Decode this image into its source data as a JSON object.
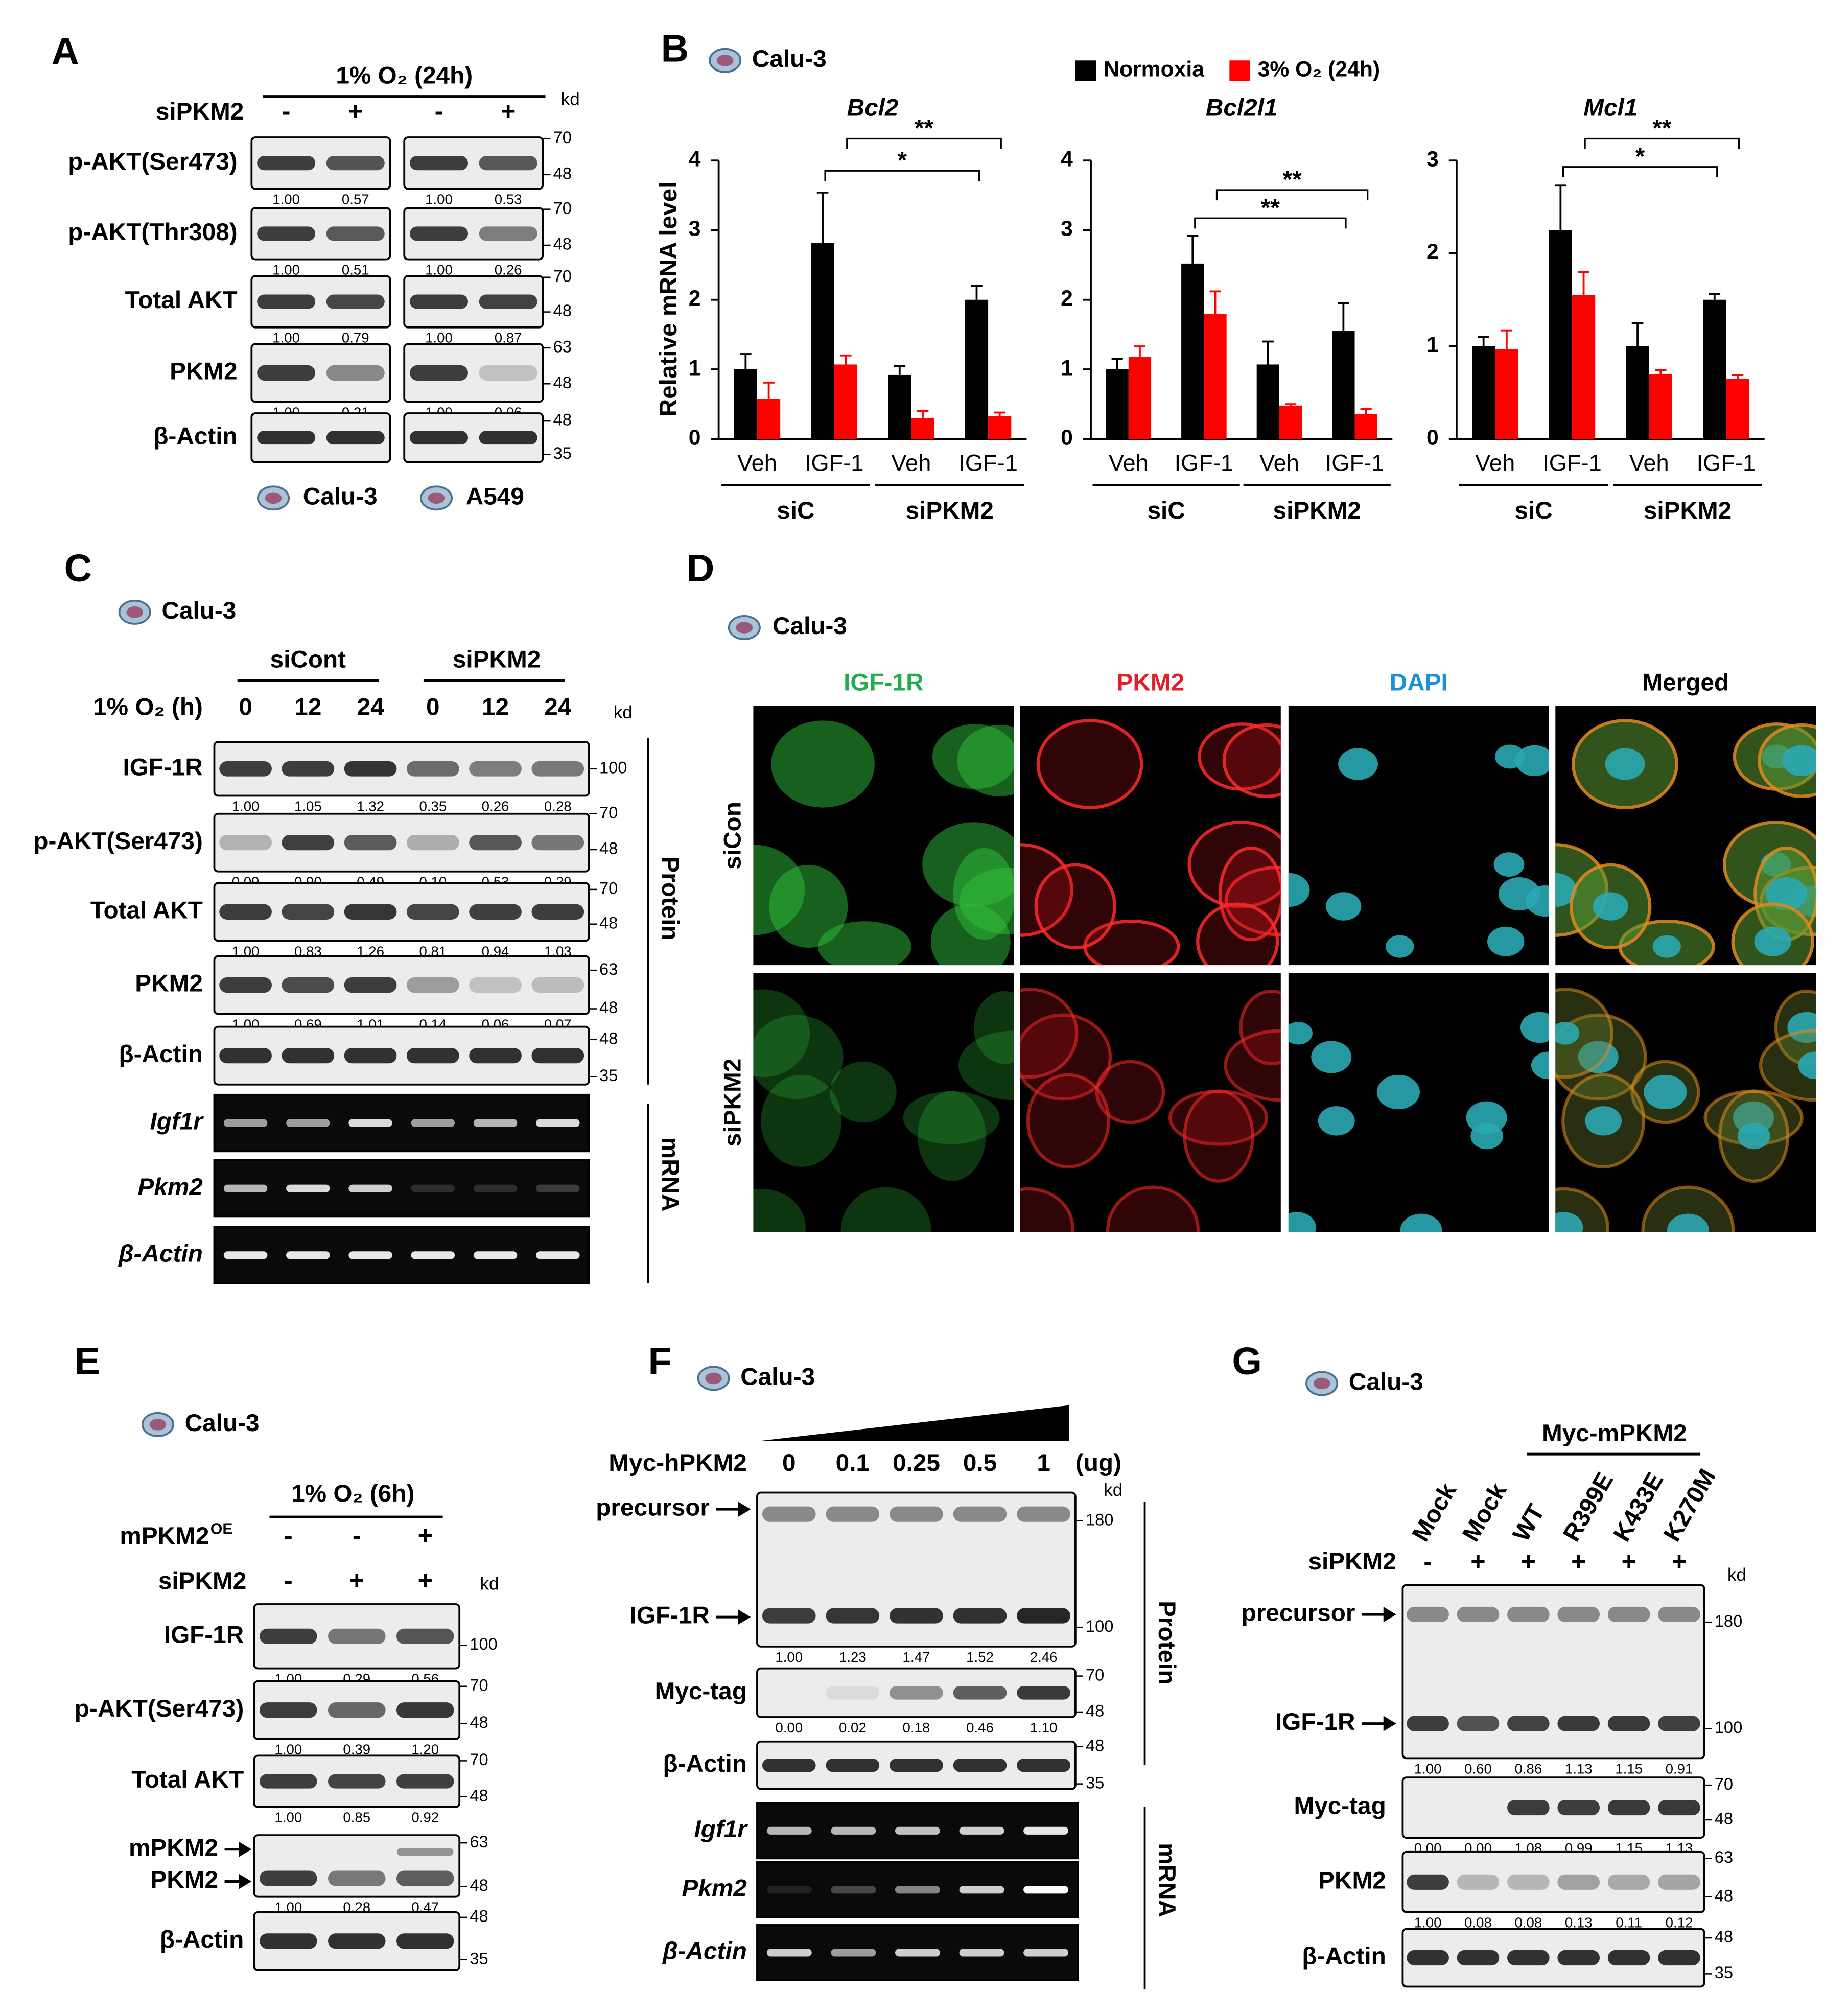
{
  "panel_a": {
    "label": "A",
    "condition": "1% O₂ (24h)",
    "sign_label": "siPKM2",
    "signs": [
      "-",
      "+",
      "-",
      "+"
    ],
    "kd": "kd",
    "rows": [
      {
        "names": [
          "p-AKT(Ser473)"
        ],
        "markers": [
          "70",
          "48"
        ],
        "quant": [
          "1.00",
          "0.57",
          "1.00",
          "0.53"
        ]
      },
      {
        "names": [
          "p-AKT(Thr308)"
        ],
        "markers": [
          "70",
          "48"
        ],
        "quant": [
          "1.00",
          "0.51",
          "1.00",
          "0.26"
        ]
      },
      {
        "names": [
          "Total AKT"
        ],
        "markers": [
          "70",
          "48"
        ],
        "quant": [
          "1.00",
          "0.79",
          "1.00",
          "0.87"
        ]
      },
      {
        "names": [
          "PKM2"
        ],
        "markers": [
          "63",
          "48"
        ],
        "quant": [
          "1.00",
          "0.21",
          "1.00",
          "0.06"
        ]
      },
      {
        "names": [
          "β-Actin"
        ],
        "markers": [
          "48",
          "35"
        ]
      }
    ],
    "cell_lines": [
      "Calu-3",
      "A549"
    ]
  },
  "panel_b": {
    "label": "B",
    "cell_line": "Calu-3"
  },
  "chart_data": [
    {
      "type": "bar",
      "title": "Bcl2",
      "y_label": "Relative mRNA level",
      "categories": [
        "Veh",
        "IGF-1",
        "Veh",
        "IGF-1"
      ],
      "groups": [
        "siC",
        "siPKM2"
      ],
      "series": [
        {
          "name": "Normoxia",
          "color": "#000000",
          "values": [
            1.0,
            2.82,
            0.92,
            2.0
          ],
          "errors": [
            0.22,
            0.72,
            0.13,
            0.2
          ]
        },
        {
          "name": "3% O₂ (24h)",
          "color": "#ff0000",
          "values": [
            0.58,
            1.07,
            0.3,
            0.33
          ],
          "errors": [
            0.23,
            0.13,
            0.1,
            0.05
          ]
        }
      ],
      "ylim": [
        0,
        4
      ],
      "yticks": [
        0,
        1,
        2,
        3,
        4
      ],
      "annotations": [
        "**",
        "*"
      ],
      "legend": "top"
    },
    {
      "type": "bar",
      "title": "Bcl2l1",
      "categories": [
        "Veh",
        "IGF-1",
        "Veh",
        "IGF-1"
      ],
      "groups": [
        "siC",
        "siPKM2"
      ],
      "series": [
        {
          "color": "#000000",
          "values": [
            1.0,
            2.52,
            1.07,
            1.55
          ],
          "errors": [
            0.15,
            0.4,
            0.33,
            0.4
          ]
        },
        {
          "color": "#ff0000",
          "values": [
            1.18,
            1.8,
            0.48,
            0.36
          ],
          "errors": [
            0.15,
            0.32,
            0.02,
            0.07
          ]
        }
      ],
      "ylim": [
        0,
        4
      ],
      "yticks": [
        0,
        1,
        2,
        3,
        4
      ],
      "annotations": [
        "**",
        "**"
      ]
    },
    {
      "type": "bar",
      "title": "Mcl1",
      "categories": [
        "Veh",
        "IGF-1",
        "Veh",
        "IGF-1"
      ],
      "groups": [
        "siC",
        "siPKM2"
      ],
      "series": [
        {
          "color": "#000000",
          "values": [
            1.0,
            2.25,
            1.0,
            1.5
          ],
          "errors": [
            0.1,
            0.48,
            0.25,
            0.06
          ]
        },
        {
          "color": "#ff0000",
          "values": [
            0.97,
            1.55,
            0.7,
            0.65
          ],
          "errors": [
            0.2,
            0.25,
            0.04,
            0.04
          ]
        }
      ],
      "ylim": [
        0,
        3
      ],
      "yticks": [
        0,
        1,
        2,
        3
      ],
      "annotations": [
        "**",
        "*"
      ]
    }
  ],
  "panel_c": {
    "label": "C",
    "cell_line": "Calu-3",
    "groups": [
      "siCont",
      "siPKM2"
    ],
    "condition": "1% O₂ (h)",
    "lanes": [
      "0",
      "12",
      "24",
      "0",
      "12",
      "24"
    ],
    "kd": "kd",
    "protein_rows": [
      {
        "names": [
          "IGF-1R"
        ],
        "markers": [
          "100"
        ],
        "quant": [
          "1.00",
          "1.05",
          "1.32",
          "0.35",
          "0.26",
          "0.28"
        ]
      },
      {
        "names": [
          "p-AKT(Ser473)"
        ],
        "markers": [
          "70",
          "48"
        ],
        "quant": [
          "0.09",
          "0.90",
          "0.49",
          "0.10",
          "0.53",
          "0.29"
        ]
      },
      {
        "names": [
          "Total AKT"
        ],
        "markers": [
          "70",
          "48"
        ],
        "quant": [
          "1.00",
          "0.83",
          "1.26",
          "0.81",
          "0.94",
          "1.03"
        ]
      },
      {
        "names": [
          "PKM2"
        ],
        "markers": [
          "63",
          "48"
        ],
        "quant": [
          "1.00",
          "0.69",
          "1.01",
          "0.14",
          "0.06",
          "0.07"
        ]
      },
      {
        "names": [
          "β-Actin"
        ],
        "markers": [
          "48",
          "35"
        ]
      }
    ],
    "mrna_rows": [
      "Igf1r",
      "Pkm2",
      "β-Actin"
    ],
    "protein": "Protein",
    "mrna": "mRNA"
  },
  "panel_d": {
    "label": "D",
    "cell_line": "Calu-3",
    "channels": [
      "IGF-1R",
      "PKM2",
      "DAPI",
      "Merged"
    ],
    "conditions": [
      "siCon",
      "siPKM2"
    ]
  },
  "panel_e": {
    "label": "E",
    "cell_line": "Calu-3",
    "condition": "1% O₂ (6h)",
    "treatments": [
      {
        "name": "mPKM2",
        "sup": "OE",
        "signs": [
          "-",
          "-",
          "+"
        ]
      },
      {
        "name": "siPKM2",
        "signs": [
          "-",
          "+",
          "+"
        ]
      }
    ],
    "kd": "kd",
    "rows": [
      {
        "names": [
          "IGF-1R"
        ],
        "markers": [
          "100"
        ],
        "quant": [
          "1.00",
          "0.29",
          "0.56"
        ]
      },
      {
        "names": [
          "p-AKT(Ser473)"
        ],
        "markers": [
          "70",
          "48"
        ],
        "quant": [
          "1.00",
          "0.39",
          "1.20"
        ]
      },
      {
        "names": [
          "Total AKT"
        ],
        "markers": [
          "70",
          "48"
        ],
        "quant": [
          "1.00",
          "0.85",
          "0.92"
        ]
      },
      {
        "names": [
          "mPKM2",
          "PKM2"
        ],
        "markers": [
          "63",
          "48"
        ],
        "quant": [
          "1.00",
          "0.28",
          "0.47"
        ]
      },
      {
        "names": [
          "β-Actin"
        ],
        "markers": [
          "48",
          "35"
        ]
      }
    ]
  },
  "panel_f": {
    "label": "F",
    "cell_line": "Calu-3",
    "treatment": "Myc-hPKM2",
    "doses": [
      "0",
      "0.1",
      "0.25",
      "0.5",
      "1"
    ],
    "unit": "(ug)",
    "kd": "kd",
    "protein_rows": [
      {
        "names": [
          "precursor",
          "IGF-1R"
        ],
        "markers": [
          "180",
          "100"
        ],
        "quant": [
          "1.00",
          "1.23",
          "1.47",
          "1.52",
          "2.46"
        ]
      },
      {
        "names": [
          "Myc-tag"
        ],
        "markers": [
          "70",
          "48"
        ],
        "quant": [
          "0.00",
          "0.02",
          "0.18",
          "0.46",
          "1.10"
        ]
      },
      {
        "names": [
          "β-Actin"
        ],
        "markers": [
          "48",
          "35"
        ]
      }
    ],
    "mrna_rows": [
      "Igf1r",
      "Pkm2",
      "β-Actin"
    ],
    "protein": "Protein",
    "mrna": "mRNA"
  },
  "panel_g": {
    "label": "G",
    "cell_line": "Calu-3",
    "treatment": "Myc-mPKM2",
    "lanes": [
      "Mock",
      "Mock",
      "WT",
      "R399E",
      "K433E",
      "K270M"
    ],
    "sign_label": "siPKM2",
    "signs": [
      "-",
      "+",
      "+",
      "+",
      "+",
      "+"
    ],
    "kd": "kd",
    "rows": [
      {
        "names": [
          "precursor",
          "IGF-1R"
        ],
        "markers": [
          "180",
          "100"
        ],
        "quant": [
          "1.00",
          "0.60",
          "0.86",
          "1.13",
          "1.15",
          "0.91"
        ]
      },
      {
        "names": [
          "Myc-tag"
        ],
        "markers": [
          "70",
          "48"
        ],
        "quant": [
          "0.00",
          "0.00",
          "1.08",
          "0.99",
          "1.15",
          "1.13"
        ]
      },
      {
        "names": [
          "PKM2"
        ],
        "markers": [
          "63",
          "48"
        ],
        "quant": [
          "1.00",
          "0.08",
          "0.08",
          "0.13",
          "0.11",
          "0.12"
        ]
      },
      {
        "names": [
          "β-Actin"
        ],
        "markers": [
          "48",
          "35"
        ]
      }
    ]
  }
}
